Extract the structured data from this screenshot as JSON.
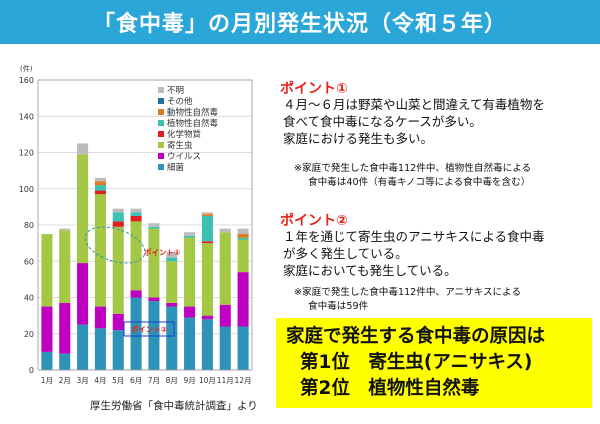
{
  "title": "「食中毒」の月別発生状況（令和５年）",
  "chart_data": {
    "type": "bar",
    "stacked": true,
    "y_unit": "(件)",
    "ylim": [
      0,
      160
    ],
    "yticks": [
      0,
      20,
      40,
      60,
      80,
      100,
      120,
      140,
      160
    ],
    "categories": [
      "1月",
      "2月",
      "3月",
      "4月",
      "5月",
      "6月",
      "7月",
      "8月",
      "9月",
      "10月",
      "11月",
      "12月"
    ],
    "series": [
      {
        "name": "細菌",
        "color": "#2e93b8",
        "values": [
          10,
          9,
          25,
          23,
          22,
          40,
          38,
          35,
          29,
          28,
          24,
          24
        ]
      },
      {
        "name": "ウイルス",
        "color": "#c000c0",
        "values": [
          25,
          28,
          34,
          12,
          9,
          4,
          2,
          2,
          6,
          2,
          12,
          30
        ]
      },
      {
        "name": "寄生虫",
        "color": "#a4c746",
        "values": [
          40,
          40,
          60,
          62,
          48,
          38,
          38,
          23,
          38,
          40,
          40,
          18
        ]
      },
      {
        "name": "化学物質",
        "color": "#e02020",
        "values": [
          0,
          0,
          0,
          2,
          3,
          3,
          0,
          0,
          0,
          1,
          0,
          0
        ]
      },
      {
        "name": "植物性自然毒",
        "color": "#3cc0b0",
        "values": [
          0,
          0,
          0,
          3,
          5,
          2,
          1,
          2,
          1,
          14,
          0,
          1
        ]
      },
      {
        "name": "動物性自然毒",
        "color": "#e07820",
        "values": [
          0,
          0,
          0,
          2,
          0,
          0,
          0,
          0,
          0,
          1,
          0,
          2
        ]
      },
      {
        "name": "その他",
        "color": "#2070a0",
        "values": [
          0,
          0,
          0,
          0,
          0,
          0,
          0,
          0,
          0,
          0,
          0,
          0
        ]
      },
      {
        "name": "不明",
        "color": "#bcbcbc",
        "values": [
          0,
          1,
          6,
          2,
          2,
          2,
          2,
          3,
          2,
          1,
          2,
          3
        ]
      }
    ],
    "legend_position": "top-right",
    "annotations": [
      "ポイント①",
      "ポイント②"
    ]
  },
  "source": "厚生労働省「食中毒統計調査」より",
  "point1": {
    "heading": "ポイント①",
    "body": [
      "４月～６月は野菜や山菜と間違えて有毒植物を",
      "食べて食中毒になるケースが多い。",
      "家庭における発生も多い。"
    ],
    "note": [
      "※家庭で発生した食中毒112件中、植物性自然毒による",
      "食中毒は40件（有毒キノコ等による食中毒を含む）"
    ]
  },
  "point2": {
    "heading": "ポイント②",
    "body": [
      "１年を通じて寄生虫のアニサキスによる食中毒",
      "が多く発生している。",
      "家庭においても発生している。"
    ],
    "note": [
      "※家庭で発生した食中毒112件中、アニサキスによる",
      "食中毒は59件"
    ]
  },
  "conclusion": {
    "line1": "家庭で発生する食中毒の原因は",
    "line2": "第1位　寄生虫(アニサキス)",
    "line3": "第2位　植物性自然毒"
  }
}
